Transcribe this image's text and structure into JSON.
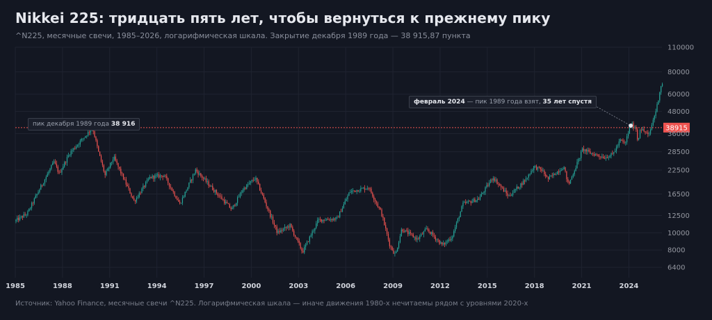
{
  "title": "Nikkei 225: тридцать пять лет, чтобы вернуться к прежнему пику",
  "subtitle": "^N225, месячные свечи, 1985–2026, логарифмическая шкала. Закрытие декабря 1989 года — 38 915,87 пункта",
  "footer": "Источник: Yahoo Finance, месячные свечи ^N225. Логарифмическая шкала — иначе движения 1980-х нечитаемы рядом с уровнями 2020-х",
  "annotations": {
    "peak1989": {
      "prefix": "пик декабря 1989 года",
      "value": "38 916"
    },
    "feb2024": {
      "date": "февраль 2024",
      "middle": " — пик 1989 года взят, ",
      "bold": "35 лет спустя"
    }
  },
  "reference_label": "38915",
  "colors": {
    "background": "#131722",
    "up": "#26a69a",
    "down": "#ef5350",
    "reference": "#ef5350",
    "grid": "#1f2330",
    "axis_text": "#9598a1"
  },
  "chart_data": {
    "type": "candlestick",
    "interval": "monthly",
    "yscale": "log",
    "xlim": [
      1985,
      2026.1
    ],
    "ylim": [
      5600,
      110000
    ],
    "yticks": [
      6400,
      8000,
      10000,
      12500,
      16500,
      22500,
      28500,
      36000,
      48000,
      60000,
      80000,
      110000
    ],
    "xticks": [
      1985,
      1988,
      1991,
      1994,
      1997,
      2000,
      2003,
      2006,
      2009,
      2012,
      2015,
      2018,
      2021,
      2024
    ],
    "reference_line": {
      "value": 38915.87
    },
    "marker": {
      "x": 2024.12,
      "y": 39910
    },
    "key_points": [
      [
        1985.0,
        11600
      ],
      [
        1985.8,
        12800
      ],
      [
        1986.5,
        17000
      ],
      [
        1987.5,
        25000
      ],
      [
        1987.83,
        21500
      ],
      [
        1988.5,
        28000
      ],
      [
        1989.96,
        38916
      ],
      [
        1990.3,
        29000
      ],
      [
        1990.75,
        21000
      ],
      [
        1991.3,
        26500
      ],
      [
        1992.6,
        15000
      ],
      [
        1993.6,
        20500
      ],
      [
        1994.5,
        21000
      ],
      [
        1995.5,
        14500
      ],
      [
        1996.5,
        22500
      ],
      [
        1998.8,
        13500
      ],
      [
        1999.5,
        17500
      ],
      [
        2000.3,
        20300
      ],
      [
        2001.7,
        10000
      ],
      [
        2002.5,
        11000
      ],
      [
        2003.3,
        7800
      ],
      [
        2004.3,
        11800
      ],
      [
        2005.5,
        12000
      ],
      [
        2006.3,
        17000
      ],
      [
        2007.5,
        18000
      ],
      [
        2008.3,
        13000
      ],
      [
        2008.85,
        8500
      ],
      [
        2009.2,
        7500
      ],
      [
        2009.6,
        10500
      ],
      [
        2010.6,
        9200
      ],
      [
        2011.2,
        10500
      ],
      [
        2012.2,
        8500
      ],
      [
        2012.8,
        9500
      ],
      [
        2013.5,
        14500
      ],
      [
        2014.5,
        15500
      ],
      [
        2015.4,
        20500
      ],
      [
        2016.4,
        16000
      ],
      [
        2017.5,
        20000
      ],
      [
        2018.0,
        23500
      ],
      [
        2018.5,
        22500
      ],
      [
        2018.9,
        20000
      ],
      [
        2019.9,
        23500
      ],
      [
        2020.2,
        18500
      ],
      [
        2020.9,
        26500
      ],
      [
        2021.1,
        29500
      ],
      [
        2021.6,
        28000
      ],
      [
        2022.5,
        26500
      ],
      [
        2023.0,
        27500
      ],
      [
        2023.5,
        33000
      ],
      [
        2023.8,
        31500
      ],
      [
        2024.12,
        39910
      ],
      [
        2024.25,
        40200
      ],
      [
        2024.55,
        38000
      ],
      [
        2024.6,
        31500
      ],
      [
        2024.75,
        38500
      ],
      [
        2025.2,
        36000
      ],
      [
        2025.3,
        34500
      ],
      [
        2025.5,
        40500
      ],
      [
        2025.8,
        50000
      ],
      [
        2026.0,
        62000
      ],
      [
        2026.1,
        68000
      ]
    ]
  }
}
